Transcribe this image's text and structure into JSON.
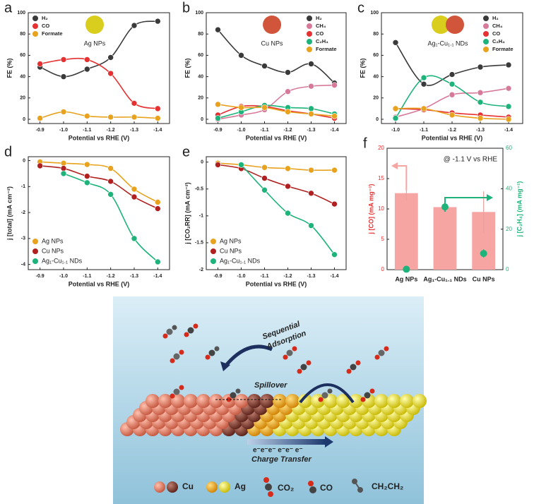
{
  "chart_data": [
    {
      "label": "a",
      "type": "line",
      "annotation": "Ag NPs",
      "marker_colors": [
        "#d9cd1e"
      ],
      "xlabel": "Potential vs RHE (V)",
      "ylabel": "FE (%)",
      "x": [
        -0.9,
        -1,
        -1.1,
        -1.2,
        -1.3,
        -1.4
      ],
      "xlim": [
        -0.85,
        -1.45
      ],
      "xticks": [
        -0.9,
        {
          "value": -1,
          "label": "-1.0"
        },
        -1.1,
        -1.2,
        -1.3,
        -1.4
      ],
      "ylim": [
        -4,
        100
      ],
      "yticks": [
        0,
        20,
        40,
        60,
        80,
        100
      ],
      "legend": "upper left",
      "series": [
        {
          "name": "H₂",
          "color": "#3a3a3a",
          "values": [
            49,
            40,
            47,
            58,
            88,
            92
          ]
        },
        {
          "name": "CO",
          "color": "#e53131",
          "values": [
            52,
            56,
            56,
            43,
            15,
            10
          ]
        },
        {
          "name": "Formate",
          "color": "#e8a21e",
          "values": [
            1,
            7,
            3,
            2,
            2,
            1
          ]
        }
      ]
    },
    {
      "label": "b",
      "type": "line",
      "annotation": "Cu NPs",
      "marker_colors": [
        "#d0553a"
      ],
      "xlabel": "Potential vs RHE (V)",
      "ylabel": "FE (%)",
      "x": [
        -0.9,
        -1,
        -1.1,
        -1.2,
        -1.3,
        -1.4
      ],
      "xlim": [
        -0.85,
        -1.45
      ],
      "xticks": [
        -0.9,
        {
          "value": -1,
          "label": "-1.0"
        },
        -1.1,
        -1.2,
        -1.3,
        -1.4
      ],
      "ylim": [
        -4,
        100
      ],
      "yticks": [
        0,
        20,
        40,
        60,
        80,
        100
      ],
      "legend": "upper right",
      "series": [
        {
          "name": "H₂",
          "color": "#3a3a3a",
          "values": [
            84,
            60,
            50,
            44,
            52,
            34
          ]
        },
        {
          "name": "CH₄",
          "color": "#d77a9a",
          "values": [
            0,
            4,
            9,
            26,
            31,
            32
          ]
        },
        {
          "name": "CO",
          "color": "#e53131",
          "values": [
            4,
            12,
            12,
            8,
            5,
            1
          ]
        },
        {
          "name": "C₂H₄",
          "color": "#1db37a",
          "values": [
            1,
            7,
            13,
            11,
            10,
            5
          ]
        },
        {
          "name": "Formate",
          "color": "#e8a21e",
          "values": [
            14,
            11,
            11,
            7,
            5,
            3
          ]
        }
      ]
    },
    {
      "label": "c",
      "type": "line",
      "annotation": "Ag₁-Cu₁.₁ NDs",
      "marker_colors": [
        "#d9cd1e",
        "#d0553a"
      ],
      "xlabel": "Potential vs RHE (V)",
      "ylabel": "FE (%)",
      "x": [
        -1,
        -1.1,
        -1.2,
        -1.3,
        -1.4
      ],
      "xlim": [
        -0.95,
        -1.45
      ],
      "xticks": [
        {
          "value": -1,
          "label": "-1.0"
        },
        -1.1,
        -1.2,
        -1.3,
        -1.4
      ],
      "ylim": [
        -4,
        100
      ],
      "yticks": [
        0,
        20,
        40,
        60,
        80,
        100
      ],
      "legend": "upper right",
      "series": [
        {
          "name": "H₂",
          "color": "#3a3a3a",
          "values": [
            72,
            33,
            42,
            49,
            51
          ]
        },
        {
          "name": "CH₄",
          "color": "#d77a9a",
          "values": [
            2,
            10,
            23,
            25,
            29
          ]
        },
        {
          "name": "CO",
          "color": "#e53131",
          "values": [
            10,
            9,
            6,
            4,
            2
          ]
        },
        {
          "name": "C₂H₄",
          "color": "#1db37a",
          "values": [
            1,
            39,
            33,
            16,
            12
          ]
        },
        {
          "name": "Formate",
          "color": "#e8a21e",
          "values": [
            10,
            10,
            4,
            1,
            0
          ]
        }
      ]
    },
    {
      "label": "d",
      "type": "line",
      "xlabel": "Potential vs RHE (V)",
      "ylabel": "j [total] (mA cm⁻²)",
      "x": [
        -0.9,
        -1,
        -1.1,
        -1.2,
        -1.3,
        -1.4
      ],
      "xlim": [
        -0.85,
        -1.45
      ],
      "xticks": [
        -0.9,
        {
          "value": -1,
          "label": "-1.0"
        },
        -1.1,
        -1.2,
        -1.3,
        -1.4
      ],
      "ylim": [
        -4.2,
        0.15
      ],
      "yticks": [
        0,
        -1,
        -2,
        -3,
        -4
      ],
      "legend": "lower left",
      "series": [
        {
          "name": "Ag NPs",
          "color": "#e8a21e",
          "values": [
            -0.05,
            -0.1,
            -0.15,
            -0.3,
            -1.1,
            -1.6
          ]
        },
        {
          "name": "Cu NPs",
          "color": "#b02020",
          "values": [
            -0.2,
            -0.3,
            -0.6,
            -0.8,
            -1.4,
            -1.85
          ]
        },
        {
          "name": "Ag₁-Cu₁.₁ NDs",
          "color": "#1db37a",
          "values": [
            null,
            -0.5,
            -0.85,
            -1.3,
            -3,
            -3.9
          ]
        }
      ]
    },
    {
      "label": "e",
      "type": "line",
      "xlabel": "Potential vs RHE (V)",
      "ylabel": "j [CO₂RR] (mA cm⁻²)",
      "x": [
        -0.9,
        -1,
        -1.1,
        -1.2,
        -1.3,
        -1.4
      ],
      "xlim": [
        -0.85,
        -1.45
      ],
      "xticks": [
        -0.9,
        {
          "value": -1,
          "label": "-1.0"
        },
        -1.1,
        -1.2,
        -1.3,
        -1.4
      ],
      "ylim": [
        -2,
        0.1
      ],
      "yticks": [
        0,
        -0.5,
        -1,
        -1.5,
        -2
      ],
      "legend": "lower left",
      "series": [
        {
          "name": "Ag NPs",
          "color": "#e8a21e",
          "values": [
            -0.02,
            -0.05,
            -0.1,
            -0.12,
            -0.15,
            -0.15
          ]
        },
        {
          "name": "Cu NPs",
          "color": "#b02020",
          "values": [
            -0.05,
            -0.12,
            -0.3,
            -0.45,
            -0.58,
            -0.78
          ]
        },
        {
          "name": "Ag₁-Cu₁.₁ NDs",
          "color": "#1db37a",
          "values": [
            null,
            -0.05,
            -0.52,
            -0.95,
            -1.18,
            -1.72
          ]
        }
      ]
    },
    {
      "label": "f",
      "type": "bar",
      "annotation": "@ -1.1 V vs RHE",
      "ylabel": "j [CO] (mA mg⁻¹)",
      "y2label": "j [C₂H₄] (mA mg⁻¹)",
      "categories": [
        "Ag NPs",
        "Ag₁-Cu₁.₁ NDs",
        "Cu NPs"
      ],
      "ylim": [
        0,
        20
      ],
      "yticks": [
        0,
        5,
        10,
        15,
        20
      ],
      "y2lim": [
        0,
        60
      ],
      "y2ticks": [
        0,
        20,
        40,
        60
      ],
      "series": [
        {
          "color": "#f6a5a3",
          "values": [
            12.6,
            10.3,
            9.5
          ],
          "errors": [
            1.2,
            0.8,
            3.4
          ]
        },
        {
          "color": "#1db37a",
          "axis": "y2",
          "values": [
            0.2,
            31,
            8
          ],
          "errors": [
            0.4,
            2,
            2
          ]
        }
      ]
    }
  ],
  "scheme": {
    "adsorption": [
      "Sequential",
      "Adsorption"
    ],
    "spillover": "Spillover",
    "electrons": "e⁻e⁻e⁻ e⁻e⁻ e⁻",
    "charge_transfer": "Charge Transfer",
    "legend": [
      "Cu",
      "Ag",
      "CO₂",
      "CO",
      "CH₂CH₂"
    ]
  }
}
